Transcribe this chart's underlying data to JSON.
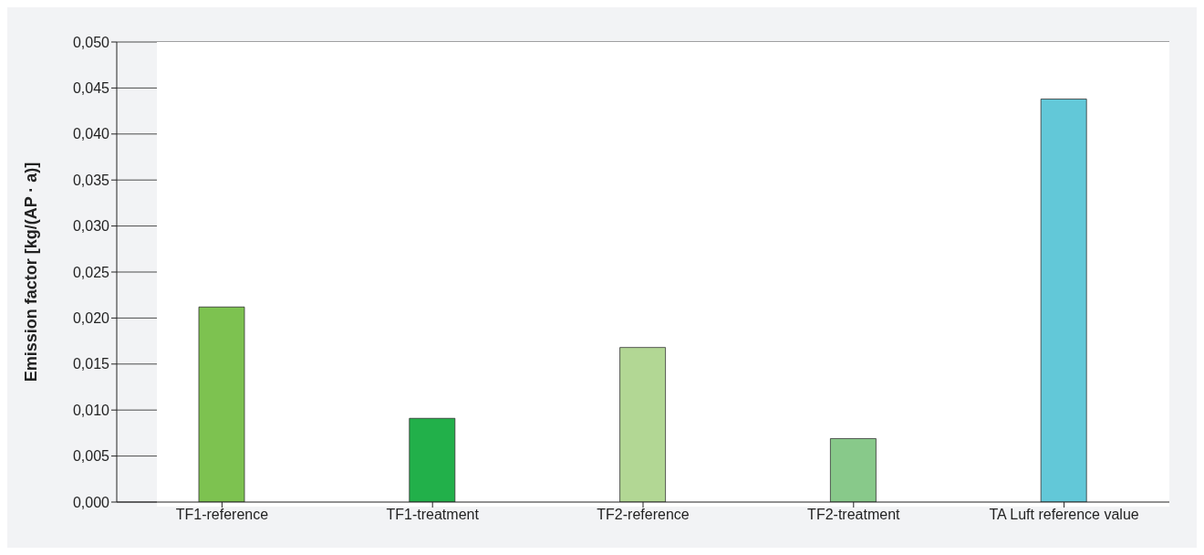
{
  "chart_data": {
    "type": "bar",
    "ylabel": "Emission factor [kg/(AP · a)]",
    "categories": [
      "TF1-reference",
      "TF1-treatment",
      "TF2-reference",
      "TF2-treatment",
      "TA Luft reference value"
    ],
    "values": [
      0.0212,
      0.0091,
      0.0168,
      0.0069,
      0.0438
    ],
    "colors": [
      "#7dc250",
      "#22b04a",
      "#b2d794",
      "#88c98a",
      "#62c8d8"
    ],
    "ylim": [
      0,
      0.05
    ],
    "yticks": [
      {
        "value": 0,
        "label": "0,000"
      },
      {
        "value": 0.005,
        "label": "0,005"
      },
      {
        "value": 0.01,
        "label": "0,010"
      },
      {
        "value": 0.015,
        "label": "0,015"
      },
      {
        "value": 0.02,
        "label": "0,020"
      },
      {
        "value": 0.025,
        "label": "0,025"
      },
      {
        "value": 0.03,
        "label": "0,030"
      },
      {
        "value": 0.035,
        "label": "0,035"
      },
      {
        "value": 0.04,
        "label": "0,040"
      },
      {
        "value": 0.045,
        "label": "0,045"
      },
      {
        "value": 0.05,
        "label": "0,050"
      }
    ],
    "grid": "y",
    "legend": false
  }
}
